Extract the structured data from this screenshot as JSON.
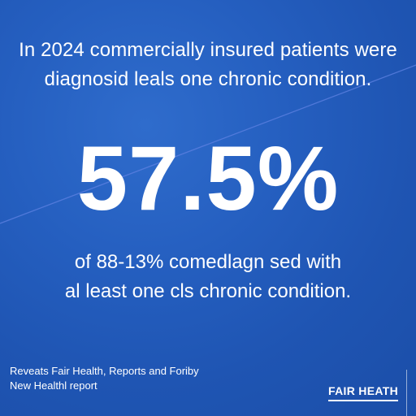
{
  "headline": {
    "line1": "In 2024 commercially insured patients were",
    "line2": "diagnosid leals one chronic condition."
  },
  "stat": {
    "value": "57.5%"
  },
  "subtext": {
    "line1": "of 88-13% comedlagn sed with",
    "line2": "al least one cls chronic condition."
  },
  "source": {
    "line1": "Reveats Fair Health, Reports and Foriby",
    "line2": "New Healthl report"
  },
  "brand": {
    "logo_text": "FAIR HEATH"
  },
  "colors": {
    "background": "#2560c2",
    "text": "#ffffff"
  }
}
